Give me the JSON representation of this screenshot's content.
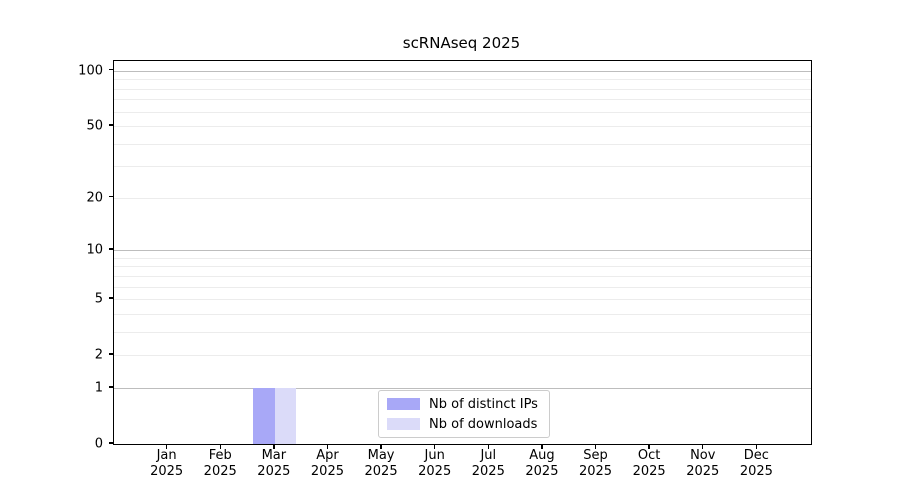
{
  "chart_data": {
    "type": "bar",
    "title": "scRNAseq 2025",
    "categories": [
      "Jan",
      "Feb",
      "Mar",
      "Apr",
      "May",
      "Jun",
      "Jul",
      "Aug",
      "Sep",
      "Oct",
      "Nov",
      "Dec"
    ],
    "year_label": "2025",
    "series": [
      {
        "name": "Nb of distinct IPs",
        "color": "#a8a8f7",
        "values": [
          0,
          0,
          1,
          0,
          0,
          0,
          0,
          0,
          0,
          0,
          0,
          0
        ]
      },
      {
        "name": "Nb of downloads",
        "color": "#dbdbf9",
        "values": [
          0,
          0,
          1,
          0,
          0,
          0,
          0,
          0,
          0,
          0,
          0,
          0
        ]
      }
    ],
    "yscale": "log1p",
    "ylim": [
      0,
      113
    ],
    "y_ticks": [
      0,
      1,
      2,
      5,
      10,
      20,
      50,
      100
    ],
    "y_grid_major": [
      1,
      10,
      100
    ],
    "y_grid_minor": [
      2,
      3,
      4,
      5,
      6,
      7,
      8,
      9,
      20,
      30,
      40,
      50,
      60,
      70,
      80,
      90
    ],
    "grid": "horizontal major+minor",
    "legend_position": "lower center inside plot",
    "xlabel": "",
    "ylabel": ""
  }
}
